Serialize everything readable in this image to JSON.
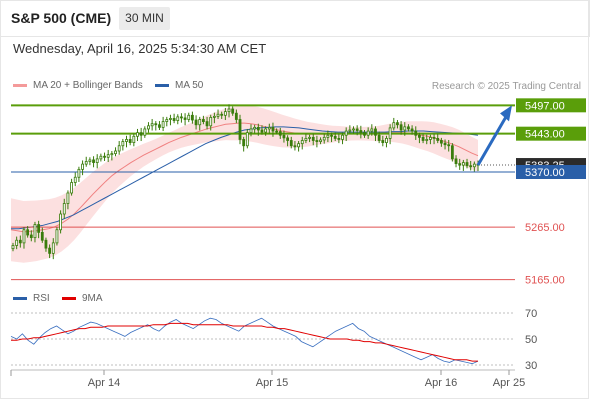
{
  "header": {
    "title": "S&P 500 (CME)",
    "timeframe": "30 MIN",
    "datetime": "Wednesday, April 16, 2025 5:34:30 AM CET"
  },
  "legend": {
    "ma20": "MA 20 + Bollinger Bands",
    "ma50": "MA 50",
    "copyright": "Research © 2025 Trading Central",
    "rsi": "RSI",
    "rsi_ma": "9MA"
  },
  "colors": {
    "green": "#5a9e0a",
    "blue": "#2a5fa8",
    "red": "#e05252",
    "band": "#fbd8d8",
    "candle": "#3a7d0c",
    "current": "#2b2b2b",
    "arrow": "#2a6ac0"
  },
  "chart_data": [
    {
      "type": "candlestick",
      "x_ticks": [
        "Apr 14",
        "Apr 15",
        "Apr 16",
        "Apr 25"
      ],
      "ylim": [
        5130,
        5530
      ],
      "levels": [
        {
          "label": "5497.00",
          "value": 5497,
          "kind": "resistance"
        },
        {
          "label": "5443.00",
          "value": 5443,
          "kind": "resistance"
        },
        {
          "label": "5383.25",
          "value": 5383.25,
          "kind": "current"
        },
        {
          "label": "5370.00",
          "value": 5370,
          "kind": "pivot"
        },
        {
          "label": "5265.00",
          "value": 5265,
          "kind": "support"
        },
        {
          "label": "5165.00",
          "value": 5165,
          "kind": "support"
        }
      ],
      "close_series": [
        5230,
        5240,
        5235,
        5260,
        5250,
        5245,
        5270,
        5255,
        5240,
        5225,
        5215,
        5235,
        5260,
        5290,
        5310,
        5330,
        5350,
        5360,
        5375,
        5385,
        5390,
        5393,
        5388,
        5395,
        5400,
        5398,
        5403,
        5405,
        5410,
        5420,
        5428,
        5432,
        5426,
        5438,
        5445,
        5440,
        5452,
        5458,
        5462,
        5460,
        5455,
        5466,
        5470,
        5472,
        5468,
        5475,
        5473,
        5470,
        5478,
        5469,
        5460,
        5470,
        5466,
        5458,
        5474,
        5476,
        5480,
        5478,
        5485,
        5490,
        5482,
        5470,
        5432,
        5420,
        5445,
        5452,
        5455,
        5450,
        5446,
        5452,
        5455,
        5448,
        5447,
        5440,
        5435,
        5430,
        5420,
        5418,
        5424,
        5430,
        5434,
        5436,
        5430,
        5428,
        5431,
        5436,
        5440,
        5438,
        5434,
        5432,
        5440,
        5448,
        5450,
        5452,
        5449,
        5445,
        5440,
        5448,
        5452,
        5440,
        5430,
        5426,
        5434,
        5454,
        5464,
        5460,
        5450,
        5456,
        5452,
        5448,
        5440,
        5436,
        5430,
        5432,
        5436,
        5434,
        5430,
        5425,
        5422,
        5420,
        5395,
        5386,
        5383,
        5388,
        5382,
        5380,
        5385,
        5383
      ],
      "ma20_series": [
        5260,
        5258,
        5256,
        5257,
        5258,
        5260,
        5262,
        5266,
        5272,
        5280,
        5290,
        5302,
        5315,
        5328,
        5340,
        5352,
        5363,
        5372,
        5380,
        5388,
        5395,
        5402,
        5408,
        5414,
        5420,
        5426,
        5431,
        5436,
        5440,
        5444,
        5448,
        5452,
        5455,
        5458,
        5461,
        5462,
        5463,
        5463,
        5462,
        5460,
        5457,
        5454,
        5451,
        5448,
        5446,
        5444,
        5443,
        5442,
        5442,
        5442,
        5442,
        5442,
        5443,
        5443,
        5443,
        5443,
        5443,
        5443,
        5443,
        5444,
        5445,
        5445,
        5445,
        5444,
        5442,
        5440,
        5438,
        5435,
        5431,
        5427,
        5423,
        5418,
        5412,
        5406,
        5401
      ],
      "ma50_series": [
        5262,
        5262,
        5264,
        5266,
        5268,
        5272,
        5276,
        5282,
        5288,
        5296,
        5304,
        5312,
        5320,
        5328,
        5336,
        5344,
        5352,
        5360,
        5368,
        5376,
        5384,
        5392,
        5400,
        5408,
        5416,
        5424,
        5430,
        5436,
        5441,
        5446,
        5450,
        5452,
        5454,
        5455,
        5456,
        5456,
        5455,
        5454,
        5452,
        5450,
        5448,
        5447,
        5446,
        5446,
        5446,
        5446,
        5446,
        5446,
        5446,
        5447,
        5447,
        5448,
        5448,
        5448,
        5447,
        5446,
        5445,
        5444,
        5443,
        5442,
        5440
      ],
      "annotation": "projected move from 5383.25 toward 5497.00"
    },
    {
      "type": "line",
      "name": "RSI",
      "yticks": [
        70,
        50,
        30
      ],
      "ylim": [
        20,
        80
      ],
      "rsi_series": [
        52,
        50,
        54,
        49,
        46,
        51,
        55,
        58,
        60,
        57,
        54,
        56,
        59,
        61,
        63,
        62,
        60,
        58,
        56,
        54,
        52,
        55,
        57,
        59,
        61,
        58,
        56,
        60,
        63,
        65,
        62,
        60,
        58,
        61,
        64,
        66,
        65,
        62,
        60,
        58,
        56,
        60,
        62,
        64,
        66,
        63,
        60,
        58,
        56,
        54,
        52,
        48,
        46,
        44,
        47,
        50,
        53,
        56,
        58,
        60,
        62,
        58,
        56,
        52,
        50,
        48,
        46,
        44,
        42,
        40,
        38,
        36,
        34,
        36,
        38,
        35,
        33,
        32,
        34,
        33,
        32,
        31,
        33
      ],
      "ma_series": [
        49,
        49,
        50,
        50,
        51,
        51,
        52,
        53,
        54,
        55,
        56,
        57,
        58,
        58,
        59,
        59,
        59,
        60,
        60,
        60,
        60,
        60,
        60,
        60,
        60,
        61,
        61,
        61,
        62,
        62,
        62,
        62,
        61,
        61,
        61,
        61,
        61,
        61,
        61,
        60,
        60,
        60,
        60,
        60,
        60,
        59,
        59,
        58,
        58,
        57,
        56,
        55,
        54,
        53,
        52,
        51,
        50,
        50,
        50,
        50,
        49,
        49,
        48,
        48,
        47,
        47,
        46,
        45,
        44,
        43,
        42,
        41,
        40,
        39,
        38,
        37,
        36,
        35,
        34,
        34,
        34,
        33,
        33
      ]
    }
  ]
}
